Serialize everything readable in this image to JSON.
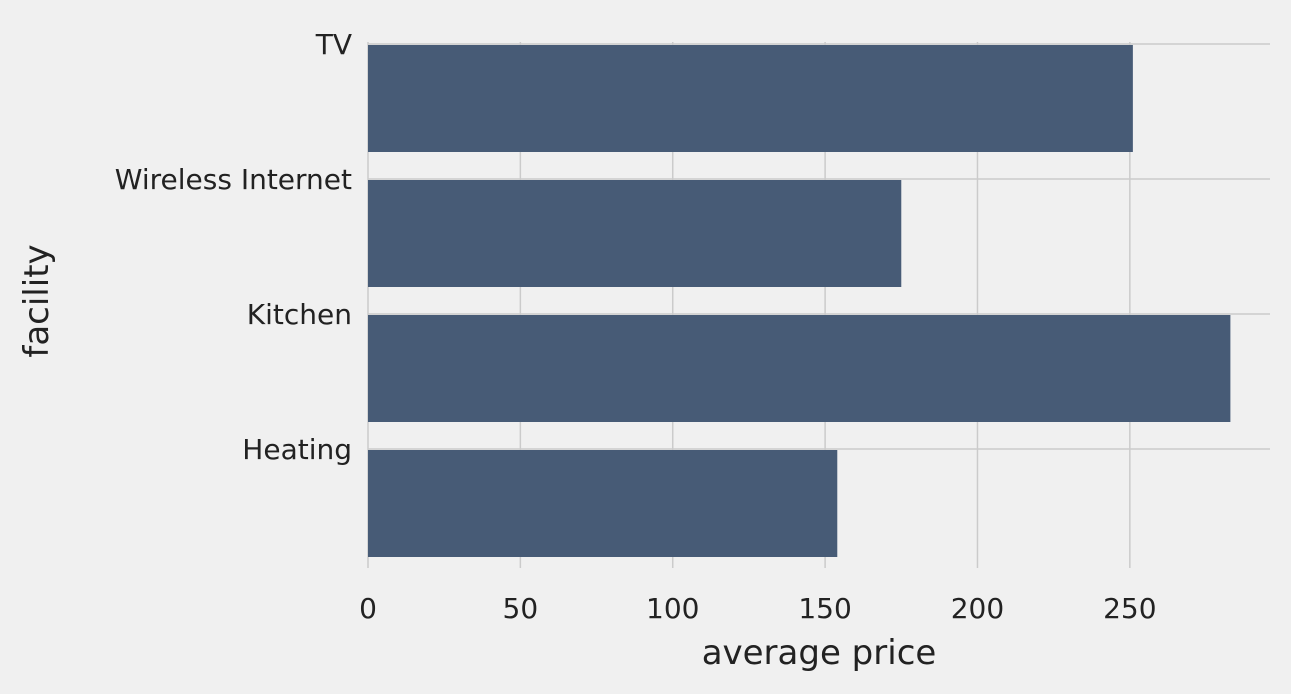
{
  "chart_data": {
    "type": "bar",
    "orientation": "horizontal",
    "categories": [
      "TV",
      "Wireless Internet",
      "Kitchen",
      "Heating"
    ],
    "values": [
      251,
      175,
      283,
      154
    ],
    "xlabel": "average price",
    "ylabel": "facility",
    "xticks": [
      0,
      50,
      100,
      150,
      200,
      250
    ],
    "xlim": [
      0,
      296
    ],
    "grid": true,
    "colors": {
      "background": "#f0f0f0",
      "bar": "#475b76",
      "grid": "#cbcbcb",
      "text": "#222222"
    }
  }
}
